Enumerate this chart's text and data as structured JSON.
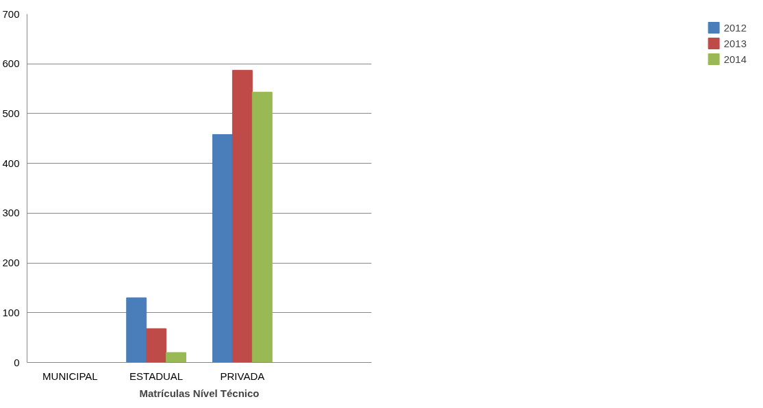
{
  "chart_data": {
    "type": "bar",
    "xlabel": "Matrículas Nível Técnico",
    "categories": [
      "MUNICIPAL",
      "ESTADUAL",
      "PRIVADA",
      null
    ],
    "series": [
      {
        "name": "2012",
        "color": "#4a7ebb",
        "values": [
          0,
          130,
          458,
          null
        ]
      },
      {
        "name": "2013",
        "color": "#be4b48",
        "values": [
          0,
          68,
          587,
          null
        ]
      },
      {
        "name": "2014",
        "color": "#98b954",
        "values": [
          0,
          20,
          543,
          null
        ]
      }
    ],
    "ylim": [
      0,
      700
    ],
    "yticks": [
      0,
      100,
      200,
      300,
      400,
      500,
      600,
      700
    ],
    "grid": "y",
    "legend": "right"
  }
}
